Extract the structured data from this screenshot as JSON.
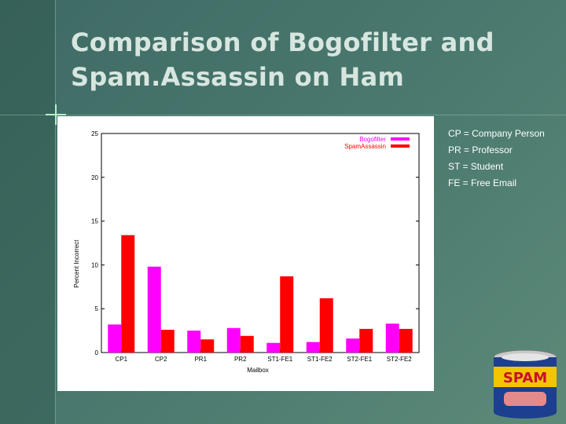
{
  "slide": {
    "title": "Comparison of Bogofilter and Spam.Assassin on Ham",
    "notes": [
      "CP = Company Person",
      "PR = Professor",
      "ST = Student",
      "FE = Free Email"
    ],
    "spam_can_text": "SPAM"
  },
  "chart_data": {
    "type": "bar",
    "xlabel": "Mailbox",
    "ylabel": "Percent Incorrect",
    "ylim": [
      0,
      25
    ],
    "yticks": [
      0,
      5,
      10,
      15,
      20,
      25
    ],
    "categories": [
      "CP1",
      "CP2",
      "PR1",
      "PR2",
      "ST1-FE1",
      "ST1-FE2",
      "ST2-FE1",
      "ST2-FE2"
    ],
    "series": [
      {
        "name": "Bogofilter",
        "color": "#ff00ff",
        "values": [
          3.2,
          9.8,
          2.5,
          2.8,
          1.1,
          1.2,
          1.6,
          3.3
        ]
      },
      {
        "name": "SpamAssassin",
        "color": "#ff0000",
        "values": [
          13.4,
          2.6,
          1.5,
          1.9,
          8.7,
          6.2,
          2.7,
          2.7
        ]
      }
    ],
    "legend": "top-right",
    "grid": false
  }
}
